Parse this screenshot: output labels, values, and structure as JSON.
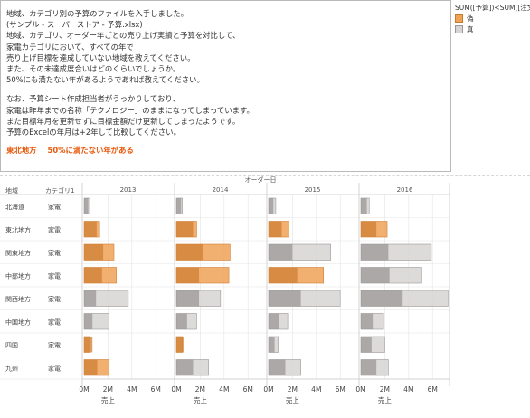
{
  "note": {
    "lines": [
      "地域、カテゴリ別の予算のファイルを入手しました。",
      "(サンプル - スーパーストア - 予算.xlsx)",
      "地域、カテゴリ、オーダー年ごとの売り上げ実績と予算を対比して、",
      "家電カテゴリにおいて、すべての年で",
      "売り上げ目標を達成していない地域を教えてください。",
      "また、その未達成度合いはどのくらいでしょうか。",
      "50%にも満たない年があるようであれば教えてください。",
      "",
      "なお、予算シート作成担当者がうっかりしており、",
      "家電は昨年までの名称「テクノロジー」のままになってしまっています。",
      "また目標年月を更新せずに目標金額だけ更新してしまったようです。",
      "予算のExcelの年月は+2年して比較してください。"
    ],
    "answer_region": "東北地方",
    "answer_text": "50%に満たない年がある"
  },
  "legend": {
    "title": "SUM([予算])<SUM([注文...",
    "items": [
      {
        "label": "偽",
        "color": "#f0a257"
      },
      {
        "label": "真",
        "color": "#d7d4d4"
      }
    ]
  },
  "chart_data": {
    "type": "bar",
    "column_header": "オーダー日",
    "row_headers": [
      "地域",
      "カテゴリ1"
    ],
    "years": [
      "2013",
      "2014",
      "2015",
      "2016"
    ],
    "rows": [
      {
        "region": "北海道",
        "category": "家電"
      },
      {
        "region": "東北地方",
        "category": "家電"
      },
      {
        "region": "関東地方",
        "category": "家電"
      },
      {
        "region": "中部地方",
        "category": "家電"
      },
      {
        "region": "関西地方",
        "category": "家電"
      },
      {
        "region": "中国地方",
        "category": "家電"
      },
      {
        "region": "四国",
        "category": "家電"
      },
      {
        "region": "九州",
        "category": "家電"
      }
    ],
    "xlabel": "売上",
    "xticks": [
      "0M",
      "2M",
      "4M",
      "6M"
    ],
    "xlim": [
      0,
      7.3
    ],
    "units": "M",
    "series_note": "wide bar = budget (SUM 予算), narrow bar = actual sales; color by SUM([予算])<SUM([注文...",
    "values": {
      "2013": [
        {
          "budget": 0.5,
          "actual": 0.35,
          "flag": "真"
        },
        {
          "budget": 1.3,
          "actual": 1.05,
          "flag": "偽"
        },
        {
          "budget": 2.5,
          "actual": 1.6,
          "flag": "偽"
        },
        {
          "budget": 2.7,
          "actual": 1.5,
          "flag": "偽"
        },
        {
          "budget": 3.7,
          "actual": 1.0,
          "flag": "真"
        },
        {
          "budget": 2.1,
          "actual": 0.7,
          "flag": "真"
        },
        {
          "budget": 0.5,
          "actual": 0.7,
          "flag": "偽"
        },
        {
          "budget": 2.1,
          "actual": 1.1,
          "flag": "偽"
        }
      ],
      "2014": [
        {
          "budget": 0.5,
          "actual": 0.4,
          "flag": "真"
        },
        {
          "budget": 1.7,
          "actual": 1.4,
          "flag": "偽"
        },
        {
          "budget": 4.5,
          "actual": 2.2,
          "flag": "偽"
        },
        {
          "budget": 4.4,
          "actual": 1.9,
          "flag": "偽"
        },
        {
          "budget": 3.7,
          "actual": 1.9,
          "flag": "真"
        },
        {
          "budget": 1.7,
          "actual": 0.9,
          "flag": "真"
        },
        {
          "budget": 0.5,
          "actual": 0.6,
          "flag": "偽"
        },
        {
          "budget": 2.7,
          "actual": 1.4,
          "flag": "真"
        }
      ],
      "2015": [
        {
          "budget": 0.6,
          "actual": 0.4,
          "flag": "真"
        },
        {
          "budget": 1.7,
          "actual": 1.1,
          "flag": "偽"
        },
        {
          "budget": 5.2,
          "actual": 2.0,
          "flag": "真"
        },
        {
          "budget": 4.6,
          "actual": 2.4,
          "flag": "偽"
        },
        {
          "budget": 6.0,
          "actual": 2.7,
          "flag": "真"
        },
        {
          "budget": 1.6,
          "actual": 0.9,
          "flag": "真"
        },
        {
          "budget": 0.8,
          "actual": 0.5,
          "flag": "真"
        },
        {
          "budget": 2.7,
          "actual": 1.4,
          "flag": "真"
        }
      ],
      "2016": [
        {
          "budget": 0.7,
          "actual": 0.5,
          "flag": "真"
        },
        {
          "budget": 2.2,
          "actual": 1.3,
          "flag": "偽"
        },
        {
          "budget": 5.9,
          "actual": 2.3,
          "flag": "真"
        },
        {
          "budget": 5.1,
          "actual": 2.4,
          "flag": "真"
        },
        {
          "budget": 7.3,
          "actual": 3.5,
          "flag": "真"
        },
        {
          "budget": 1.9,
          "actual": 1.0,
          "flag": "真"
        },
        {
          "budget": 2.0,
          "actual": 0.9,
          "flag": "真"
        },
        {
          "budget": 2.3,
          "actual": 1.3,
          "flag": "真"
        }
      ]
    }
  },
  "colors": {
    "false_fill": "#f0a257",
    "false_dark": "#cf7f34",
    "true_fill": "#d7d4d4",
    "true_dark": "#9b9797",
    "grid": "#e4e4e4",
    "panel_border": "#c9c9c9"
  }
}
